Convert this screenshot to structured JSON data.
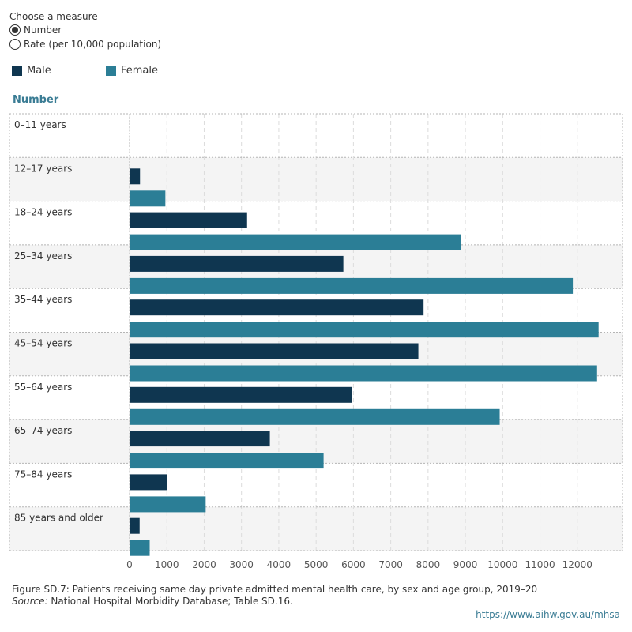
{
  "controls": {
    "title": "Choose a measure",
    "options": [
      {
        "label": "Number",
        "selected": true
      },
      {
        "label": "Rate (per 10,000 population)",
        "selected": false
      }
    ]
  },
  "legend": {
    "male": {
      "label": "Male",
      "color": "#0f3650"
    },
    "female": {
      "label": "Female",
      "color": "#2b7e96"
    }
  },
  "section_label": "Number",
  "chart_data": {
    "type": "bar",
    "orientation": "horizontal",
    "title": "Number",
    "categories": [
      "0–11 years",
      "12–17 years",
      "18–24 years",
      "25–34 years",
      "35–44 years",
      "45–54 years",
      "55–64 years",
      "65–74 years",
      "75–84 years",
      "85 years and older"
    ],
    "series": [
      {
        "name": "Male",
        "color": "#0f3650",
        "values": [
          0,
          280,
          3150,
          5730,
          7880,
          7740,
          5950,
          3760,
          1000,
          270
        ]
      },
      {
        "name": "Female",
        "color": "#2b7e96",
        "values": [
          0,
          960,
          8890,
          11880,
          12570,
          12530,
          9920,
          5200,
          2040,
          540
        ]
      }
    ],
    "xlim": [
      0,
      13000
    ],
    "xticks": [
      0,
      1000,
      2000,
      3000,
      4000,
      5000,
      6000,
      7000,
      8000,
      9000,
      10000,
      11000,
      12000
    ],
    "xlabel": "",
    "ylabel": ""
  },
  "footer": {
    "caption": "Figure SD.7: Patients receiving same day private admitted mental health care, by sex and age group, 2019–20",
    "source_label": "Source:",
    "source_text": " National Hospital Morbidity Database; Table SD.16.",
    "link": "https://www.aihw.gov.au/mhsa"
  }
}
